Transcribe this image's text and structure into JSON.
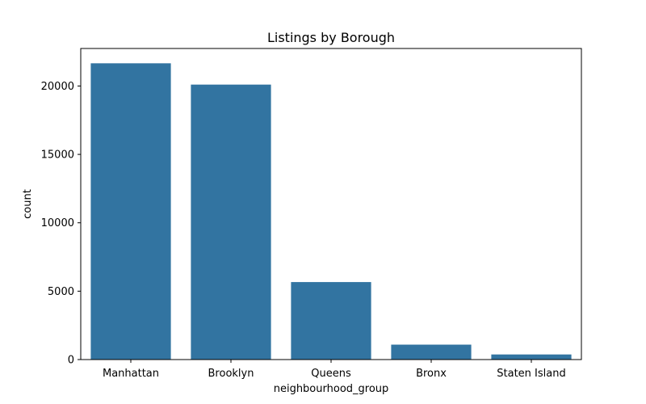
{
  "chart_data": {
    "type": "bar",
    "title": "Listings by Borough",
    "xlabel": "neighbourhood_group",
    "ylabel": "count",
    "categories": [
      "Manhattan",
      "Brooklyn",
      "Queens",
      "Bronx",
      "Staten Island"
    ],
    "values": [
      21661,
      20104,
      5666,
      1091,
      373
    ],
    "ylim": [
      0,
      22744
    ],
    "yticks": [
      0,
      5000,
      10000,
      15000,
      20000
    ],
    "grid": false,
    "bar_color": "#3274a1"
  }
}
